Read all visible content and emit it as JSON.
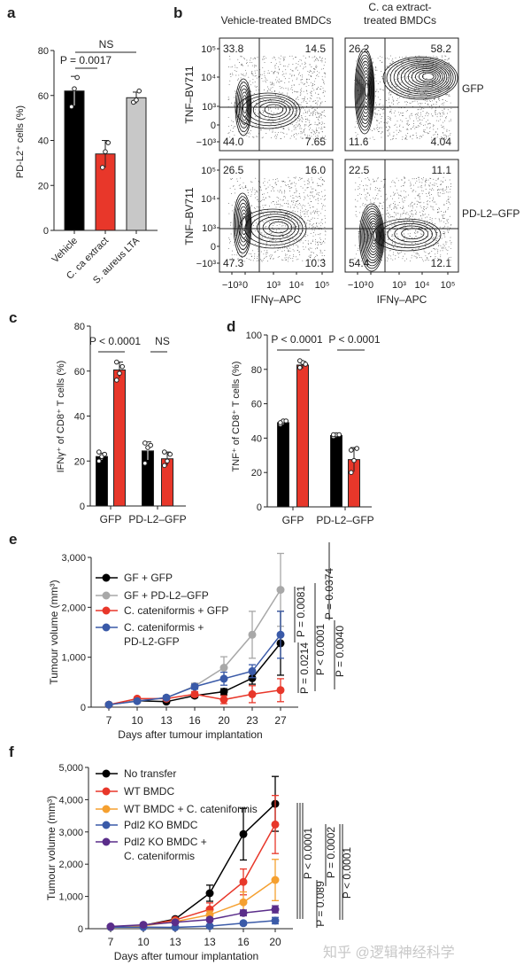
{
  "watermark": "知乎 @逻辑神经科学",
  "chart_data": [
    {
      "panel": "a",
      "type": "bar",
      "categories": [
        "Vehicle",
        "C. ca extract",
        "S. aureus LTA"
      ],
      "values": [
        62,
        34,
        59
      ],
      "errors": [
        6.5,
        6,
        2.5
      ],
      "points": [
        [
          55,
          63,
          68
        ],
        [
          28,
          35,
          39
        ],
        [
          57,
          58,
          62
        ]
      ],
      "colors": [
        "#000000",
        "#e8372a",
        "#c8c8c8"
      ],
      "ylabel": "PD-L2⁺ cells (%)",
      "ylim": [
        0,
        80
      ],
      "yticks": [
        "0",
        "20",
        "40",
        "60",
        "80"
      ],
      "annotations": [
        {
          "text": "P = 0.0017",
          "between": [
            0,
            1
          ]
        },
        {
          "text": "NS",
          "between": [
            0,
            2
          ]
        }
      ]
    },
    {
      "panel": "b",
      "type": "flow-cytometry-contour",
      "column_titles": [
        [
          "Vehicle-treated BMDCs"
        ],
        [
          "C. ca extract-",
          "treated BMDCs"
        ]
      ],
      "row_labels": [
        "GFP",
        "PD-L2–GFP"
      ],
      "xlabel": "IFNγ–APC",
      "ylabel": "TNF–BV711",
      "xticks": [
        "−10³",
        "0",
        "10³",
        "10⁴",
        "10⁵"
      ],
      "yticks": [
        "10⁵",
        "10⁴",
        "10³",
        "0",
        "−10³"
      ],
      "quadrant_percentages": [
        {
          "row": "GFP",
          "column": "Vehicle-treated BMDCs",
          "UL": "33.8",
          "UR": "14.5",
          "LL": "44.0",
          "LR": "7.65"
        },
        {
          "row": "GFP",
          "column": "C. ca extract-treated BMDCs",
          "UL": "26.2",
          "UR": "58.2",
          "LL": "11.6",
          "LR": "4.04"
        },
        {
          "row": "PD-L2–GFP",
          "column": "Vehicle-treated BMDCs",
          "UL": "26.5",
          "UR": "16.0",
          "LL": "47.3",
          "LR": "10.3"
        },
        {
          "row": "PD-L2–GFP",
          "column": "C. ca extract-treated BMDCs",
          "UL": "22.5",
          "UR": "11.1",
          "LL": "54.4",
          "LR": "12.1"
        }
      ]
    },
    {
      "panel": "c",
      "type": "bar",
      "categories": [
        "GFP",
        "PD-L2–GFP"
      ],
      "series": [
        {
          "color": "#000000",
          "values": [
            22,
            24.5
          ],
          "errors": [
            1.5,
            4
          ],
          "points": [
            [
              20,
              22,
              23,
              24
            ],
            [
              19,
              26,
              27,
              28
            ]
          ]
        },
        {
          "color": "#e8372a",
          "values": [
            60.5,
            21
          ],
          "errors": [
            3.5,
            3
          ],
          "points": [
            [
              56,
              59,
              62,
              64
            ],
            [
              18,
              20,
              23,
              24
            ]
          ]
        }
      ],
      "ylabel": "IFNγ⁺ of CD8⁺ T cells (%)",
      "ylim": [
        0,
        80
      ],
      "yticks": [
        "0",
        "20",
        "40",
        "60",
        "80"
      ],
      "annotations": [
        {
          "text": "P < 0.0001",
          "group": 0
        },
        {
          "text": "NS",
          "group": 1
        }
      ]
    },
    {
      "panel": "d",
      "type": "bar",
      "categories": [
        "GFP",
        "PD-L2–GFP"
      ],
      "series": [
        {
          "color": "#000000",
          "values": [
            49,
            41.5
          ],
          "errors": [
            1,
            1
          ],
          "points": [
            [
              48,
              50,
              50,
              49
            ],
            [
              41,
              42,
              42,
              42
            ]
          ]
        },
        {
          "color": "#e8372a",
          "values": [
            82.5,
            27.5
          ],
          "errors": [
            2,
            7
          ],
          "points": [
            [
              81,
              84,
              83,
              85
            ],
            [
              20,
              27,
              34,
              33
            ]
          ]
        }
      ],
      "ylabel": "TNF⁺ of CD8⁺ T cells (%)",
      "ylim": [
        0,
        100
      ],
      "yticks": [
        "0",
        "20",
        "40",
        "60",
        "80",
        "100"
      ],
      "annotations": [
        {
          "text": "P < 0.0001",
          "group": 0
        },
        {
          "text": "P < 0.0001",
          "group": 1
        }
      ]
    },
    {
      "panel": "e",
      "type": "line",
      "x": [
        "7",
        "10",
        "13",
        "16",
        "20",
        "23",
        "27"
      ],
      "xlabel": "Days after tumour implantation",
      "ylabel": "Tumour volume (mm³)",
      "ylim": [
        0,
        3000
      ],
      "yticks": [
        "0",
        "1,000",
        "2,000",
        "3,000"
      ],
      "series": [
        {
          "name": "GF + GFP",
          "color": "#000000",
          "values": [
            50,
            130,
            110,
            230,
            310,
            580,
            1280
          ],
          "errors": [
            0,
            20,
            20,
            40,
            60,
            120,
            640
          ]
        },
        {
          "name": "GF + PD-L2–GFP",
          "color": "#a8a8a8",
          "values": [
            50,
            130,
            190,
            420,
            790,
            1450,
            2350
          ],
          "errors": [
            0,
            20,
            40,
            60,
            220,
            470,
            730
          ]
        },
        {
          "name": "C. cateniformis + GFP",
          "color": "#e8372a",
          "values": [
            50,
            170,
            170,
            260,
            150,
            260,
            340
          ],
          "errors": [
            0,
            20,
            30,
            50,
            80,
            170,
            230
          ]
        },
        {
          "name": "C. cateniformis + PD-L2-GFP",
          "color": "#3a5aa8",
          "values": [
            50,
            120,
            190,
            410,
            570,
            720,
            1450
          ],
          "errors": [
            0,
            20,
            30,
            50,
            130,
            130,
            470
          ]
        }
      ],
      "legend_position": "top-left",
      "pvalues": [
        "P = 0.0081",
        "P = 0.0214",
        "P < 0.0001",
        "P = 0.0374",
        "P = 0.0040"
      ]
    },
    {
      "panel": "f",
      "type": "line",
      "x": [
        "7",
        "10",
        "13",
        "13",
        "16",
        "20"
      ],
      "xlabel": "Days after tumour implantation",
      "ylabel": "Tumour volume (mm³)",
      "ylim": [
        0,
        5000
      ],
      "yticks": [
        "0",
        "1,000",
        "2,000",
        "3,000",
        "4,000",
        "5,000"
      ],
      "series": [
        {
          "name": "No transfer",
          "color": "#000000",
          "values": [
            50,
            100,
            300,
            1100,
            2930,
            3870
          ],
          "errors": [
            0,
            20,
            40,
            250,
            800,
            850
          ]
        },
        {
          "name": "WT BMDC",
          "color": "#e8372a",
          "values": [
            50,
            100,
            270,
            600,
            1450,
            3230
          ],
          "errors": [
            0,
            20,
            40,
            200,
            400,
            900
          ]
        },
        {
          "name": "WT BMDC + C. cateniformis",
          "color": "#f5a030",
          "values": [
            50,
            90,
            220,
            430,
            820,
            1510
          ],
          "errors": [
            0,
            20,
            40,
            120,
            320,
            640
          ]
        },
        {
          "name": "Pdl2 KO BMDC",
          "color": "#3a5aa8",
          "values": [
            50,
            50,
            40,
            80,
            170,
            250
          ],
          "errors": [
            0,
            10,
            10,
            30,
            50,
            100
          ]
        },
        {
          "name": "Pdl2 KO BMDC + C. cateniformis",
          "color": "#5a2d8a",
          "values": [
            70,
            120,
            200,
            280,
            490,
            600
          ],
          "errors": [
            0,
            20,
            30,
            50,
            90,
            110
          ]
        }
      ],
      "legend_position": "top-left",
      "pvalues": [
        "P < 0.0001",
        "P = 0.089",
        "P = 0.0002",
        "P < 0.0001"
      ]
    }
  ]
}
